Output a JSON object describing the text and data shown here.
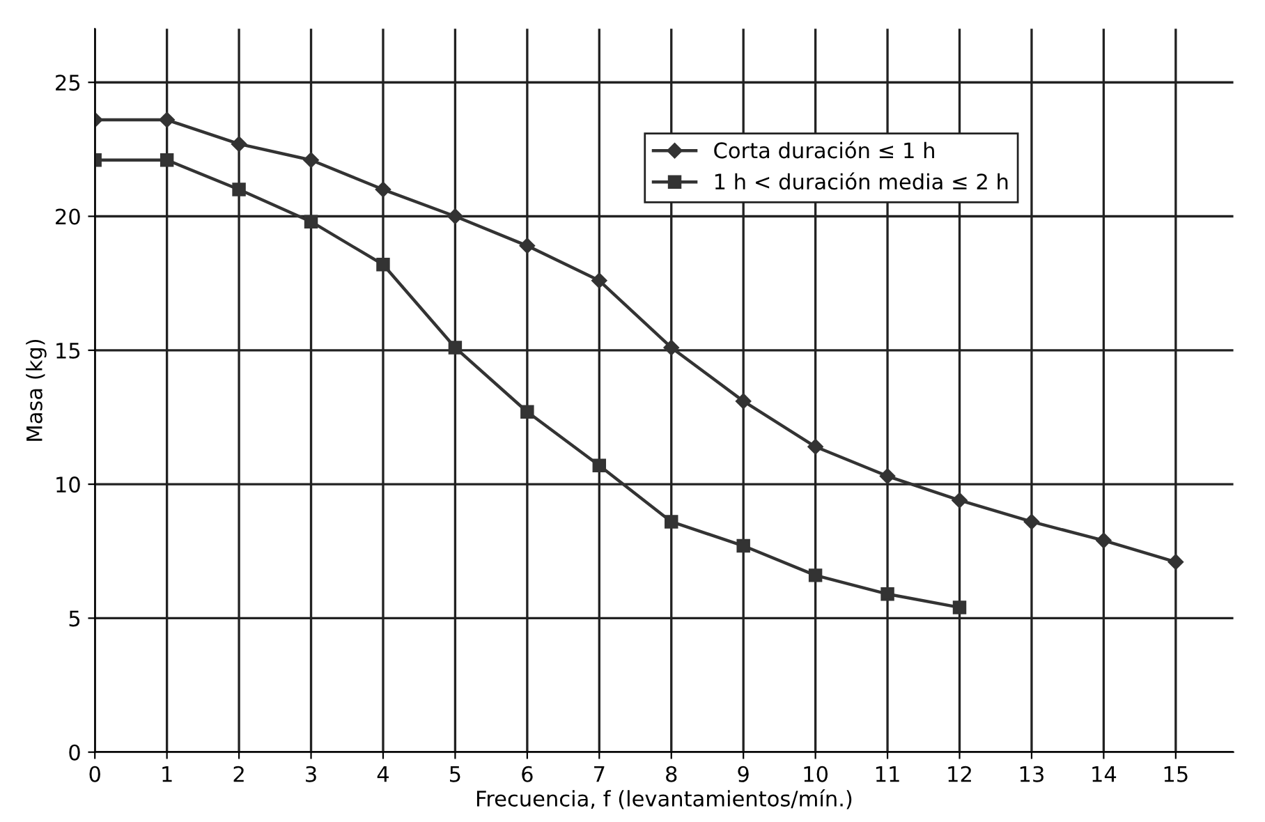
{
  "chart_data": {
    "type": "line",
    "xlabel": "Frecuencia, f (levantamientos/mín.)",
    "ylabel": "Masa (kg)",
    "xlim": [
      0,
      15.8
    ],
    "ylim": [
      0,
      27
    ],
    "xticks": [
      0,
      1,
      2,
      3,
      4,
      5,
      6,
      7,
      8,
      9,
      10,
      11,
      12,
      13,
      14,
      15
    ],
    "yticks": [
      0,
      5,
      10,
      15,
      20,
      25
    ],
    "grid": true,
    "legend": "top right",
    "line_style": "solid",
    "series": [
      {
        "name": "Corta duración ≤ 1 h",
        "color": "#333333",
        "marker": "diamond",
        "x": [
          0,
          1,
          2,
          3,
          4,
          5,
          6,
          7,
          8,
          9,
          10,
          11,
          12,
          13,
          14,
          15
        ],
        "values": [
          23.6,
          23.6,
          22.7,
          22.1,
          21.0,
          20.0,
          18.9,
          17.6,
          15.1,
          13.1,
          11.4,
          10.3,
          9.4,
          8.6,
          7.9,
          7.1
        ]
      },
      {
        "name": "1 h < duración media ≤ 2 h",
        "color": "#333333",
        "marker": "square",
        "x": [
          0,
          1,
          2,
          3,
          4,
          5,
          6,
          7,
          8,
          9,
          10,
          11,
          12
        ],
        "values": [
          22.1,
          22.1,
          21.0,
          19.8,
          18.2,
          15.1,
          12.7,
          10.7,
          8.6,
          7.7,
          6.6,
          5.9,
          5.4
        ]
      }
    ]
  }
}
